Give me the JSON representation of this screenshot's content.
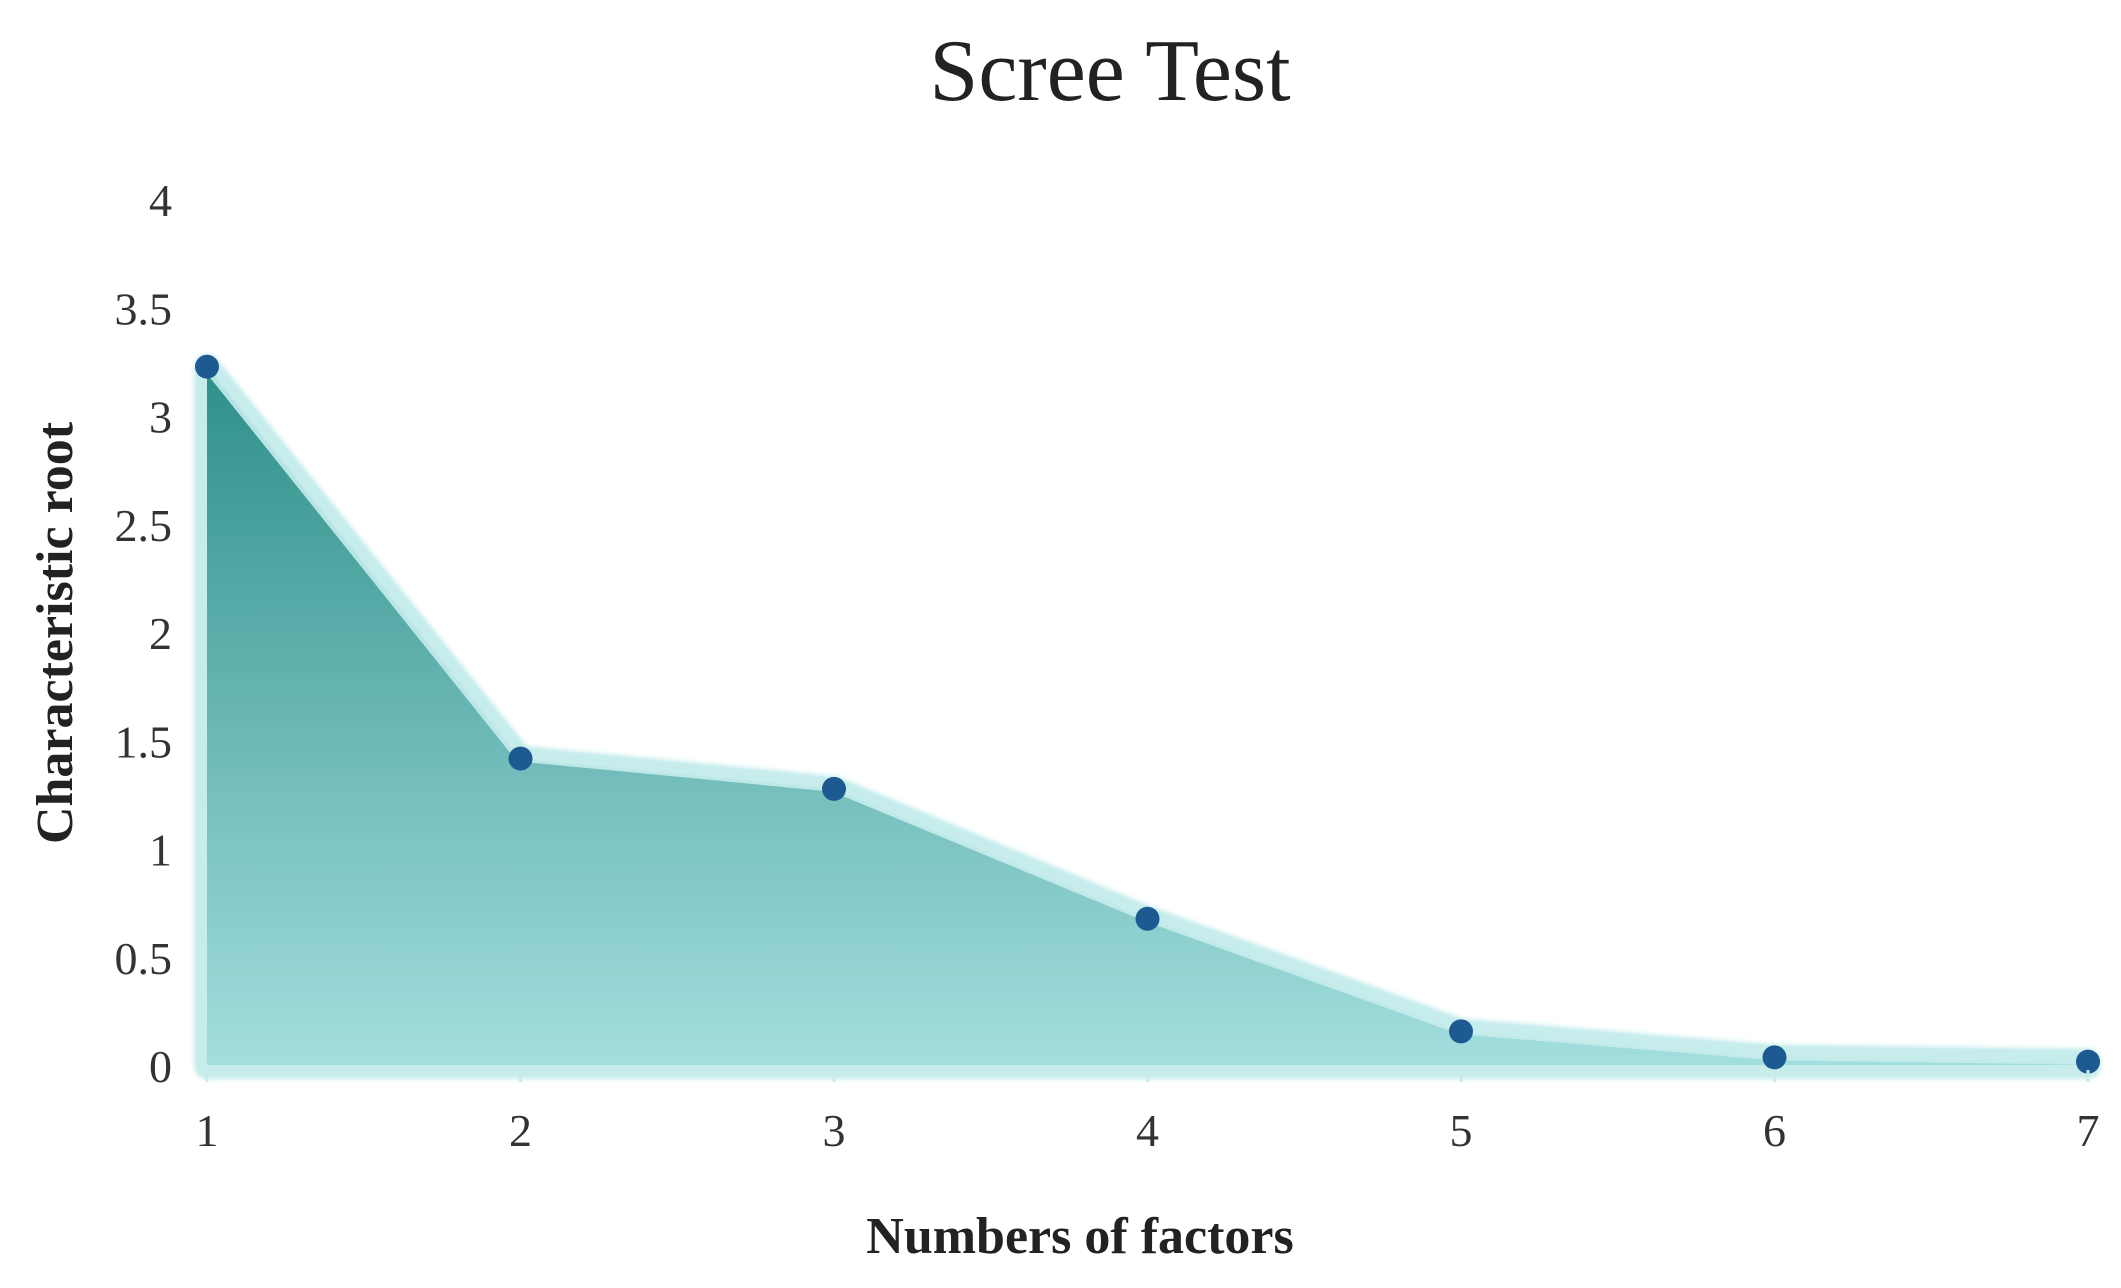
{
  "chart_data": {
    "type": "area",
    "title": "Scree Test",
    "xlabel": "Numbers of factors",
    "ylabel": "Characteristic root",
    "x": [
      1,
      2,
      3,
      4,
      5,
      6,
      7
    ],
    "series": [
      {
        "values": [
          3.23,
          1.42,
          1.28,
          0.68,
          0.16,
          0.04,
          0.02
        ]
      }
    ],
    "xlim": [
      1,
      7
    ],
    "ylim": [
      0,
      4
    ],
    "yticks": [
      "0",
      "0.5",
      "1",
      "1.5",
      "2",
      "2.5",
      "3",
      "3.5",
      "4"
    ],
    "xticks": [
      "1",
      "2",
      "3",
      "4",
      "5",
      "6",
      "7"
    ],
    "grid": false,
    "legend": "none",
    "colors": {
      "fill_top": "#2e8f8a",
      "fill_bottom": "#a3dede",
      "band": "#c6ecec",
      "marker": "#1d5a92",
      "text": "#222222"
    }
  }
}
